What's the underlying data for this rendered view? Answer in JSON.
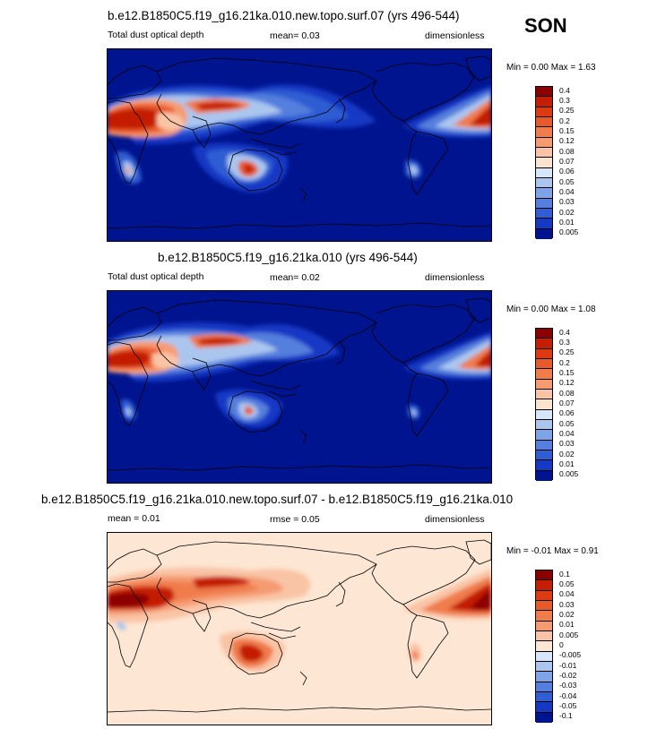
{
  "season": "SON",
  "panels": [
    {
      "title": "b.e12.B1850C5.f19_g16.21ka.010.new.topo.surf.07 (yrs 496-544)",
      "left": "Total dust optical depth",
      "middle": "mean=  0.03",
      "right": "dimensionless",
      "minmax": "Min =  0.00 Max =  1.63",
      "levels": [
        "0.4",
        "0.3",
        "0.25",
        "0.2",
        "0.15",
        "0.12",
        "0.08",
        "0.07",
        "0.06",
        "0.05",
        "0.04",
        "0.03",
        "0.02",
        "0.01",
        "0.005"
      ],
      "colors": [
        "#8b0000",
        "#c41e05",
        "#dc3a12",
        "#e95a2a",
        "#f07b4b",
        "#f59b72",
        "#f9c4a6",
        "#fbe3cf",
        "#d7e6f8",
        "#aac6ef",
        "#7ea3e6",
        "#557fdd",
        "#2f5dd3",
        "#1639c4",
        "#00148f"
      ]
    },
    {
      "title": "b.e12.B1850C5.f19_g16.21ka.010 (yrs 496-544)",
      "left": "Total dust optical depth",
      "middle": "mean=  0.02",
      "right": "dimensionless",
      "minmax": "Min =  0.00 Max =  1.08",
      "levels": [
        "0.4",
        "0.3",
        "0.25",
        "0.2",
        "0.15",
        "0.12",
        "0.08",
        "0.07",
        "0.06",
        "0.05",
        "0.04",
        "0.03",
        "0.02",
        "0.01",
        "0.005"
      ],
      "colors": [
        "#8b0000",
        "#c41e05",
        "#dc3a12",
        "#e95a2a",
        "#f07b4b",
        "#f59b72",
        "#f9c4a6",
        "#fbe3cf",
        "#d7e6f8",
        "#aac6ef",
        "#7ea3e6",
        "#557fdd",
        "#2f5dd3",
        "#1639c4",
        "#00148f"
      ]
    },
    {
      "title": "b.e12.B1850C5.f19_g16.21ka.010.new.topo.surf.07 - b.e12.B1850C5.f19_g16.21ka.010",
      "left": "mean =  0.01",
      "middle": "rmse =  0.05",
      "right": "dimensionless",
      "minmax": "Min = -0.01 Max =  0.91",
      "levels": [
        "0.1",
        "0.05",
        "0.04",
        "0.03",
        "0.02",
        "0.01",
        "0.005",
        "0",
        "-0.005",
        "-0.01",
        "-0.02",
        "-0.03",
        "-0.04",
        "-0.05",
        "-0.1"
      ],
      "colors": [
        "#8b0000",
        "#c41e05",
        "#dc3a12",
        "#e95a2a",
        "#f07b4b",
        "#f59b72",
        "#f9c4a6",
        "#fde6d3",
        "#d7e6f8",
        "#aac6ef",
        "#7ea3e6",
        "#557fdd",
        "#2f5dd3",
        "#1639c4",
        "#00148f"
      ]
    }
  ]
}
